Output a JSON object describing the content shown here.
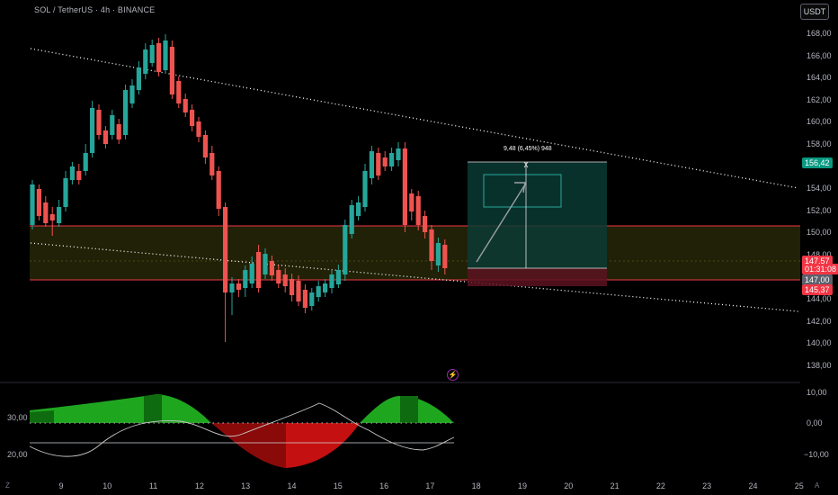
{
  "header": {
    "symbol": "SOL / TetherUS · 4h · BINANCE"
  },
  "currency_button": "USDT",
  "price_axis": {
    "labels": [
      "168,00",
      "166,00",
      "164,00",
      "162,00",
      "160,00",
      "158,00",
      "154,00",
      "152,00",
      "150,00",
      "148,00",
      "144,00",
      "142,00",
      "140,00",
      "138,00"
    ],
    "values": [
      168,
      166,
      164,
      162,
      160,
      158,
      154,
      152,
      150,
      148,
      144,
      142,
      140,
      138
    ]
  },
  "price_tags": {
    "target": {
      "text": "156,42",
      "price": 156.42,
      "color": "#089981"
    },
    "last": {
      "text": "147,57",
      "price": 147.57,
      "color": "#f23645"
    },
    "countdown": {
      "text": "01:31:08",
      "color": "#f23645"
    },
    "entry": {
      "text": "147,00",
      "price": 147.0,
      "color": "#5d606b"
    },
    "stop": {
      "text": "145,37",
      "price": 145.37,
      "color": "#f23645"
    }
  },
  "time_axis": {
    "labels": [
      "9",
      "10",
      "11",
      "12",
      "13",
      "14",
      "15",
      "16",
      "17",
      "18",
      "19",
      "20",
      "21",
      "22",
      "23",
      "24",
      "25"
    ]
  },
  "corner_left": "Z",
  "corner_right": "A",
  "measure_label": "9,48 (6,45%) 948",
  "oscillator": {
    "left_labels": [
      "30,00",
      "20,00"
    ],
    "right_labels": [
      "10,00",
      "0,00",
      "−10,00"
    ]
  },
  "colors": {
    "bull": "#26a69a",
    "bear": "#ef5350",
    "zone": "#4a4a10",
    "target_zone": "#0d3b36",
    "stop_zone": "#4a1018"
  },
  "chart_data": {
    "type": "candlestick",
    "timeframe": "4h",
    "ylim": [
      137,
      169
    ],
    "target": 156.42,
    "entry": 147.0,
    "stop": 145.37,
    "last": 147.57
  }
}
